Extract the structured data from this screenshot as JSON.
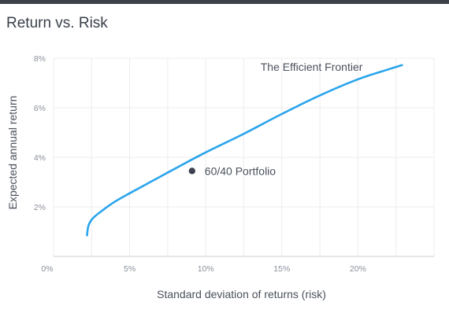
{
  "chart_data": {
    "type": "line",
    "title": "Return vs. Risk",
    "xlabel": "Standard deviation of returns (risk)",
    "ylabel": "Expected annual return",
    "xlim": [
      0,
      25
    ],
    "ylim": [
      0,
      8
    ],
    "x_ticks": [
      0,
      5,
      10,
      15,
      20
    ],
    "x_tick_labels": [
      "0%",
      "5%",
      "10%",
      "15%",
      "20%"
    ],
    "y_ticks": [
      2,
      4,
      6,
      8
    ],
    "y_tick_labels": [
      "2%",
      "4%",
      "6%",
      "8%"
    ],
    "grid": true,
    "series": [
      {
        "name": "The Efficient Frontier",
        "color": "#2aa4ec",
        "x": [
          2.2,
          2.3,
          2.6,
          3.2,
          4.0,
          5.0,
          6.5,
          8.0,
          10.0,
          12.5,
          15.0,
          17.5,
          20.0,
          22.0,
          22.9
        ],
        "y": [
          0.85,
          1.25,
          1.55,
          1.85,
          2.2,
          2.55,
          3.05,
          3.55,
          4.2,
          4.95,
          5.75,
          6.5,
          7.15,
          7.55,
          7.72
        ]
      }
    ],
    "points": [
      {
        "label": "60/40 Portfolio",
        "x": 9.1,
        "y": 3.45,
        "color": "#3c4250"
      }
    ]
  }
}
